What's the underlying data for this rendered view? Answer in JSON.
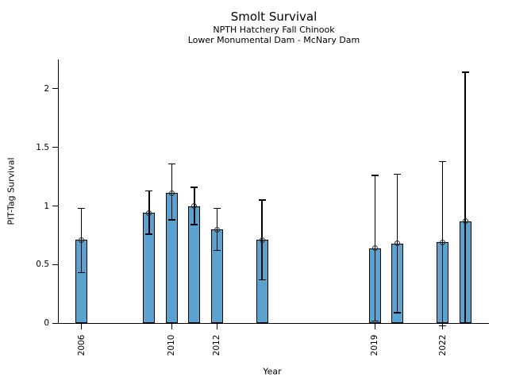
{
  "chart_data": {
    "type": "bar",
    "title": "Smolt Survival",
    "subtitle1": "NPTH Hatchery Fall Chinook",
    "subtitle2": "Lower Monumental Dam - McNary Dam",
    "xlabel": "Year",
    "ylabel": "PIT-Tag Survival",
    "xlim": [
      2005,
      2024
    ],
    "ylim": [
      0,
      2.25
    ],
    "grid": false,
    "legend": "none",
    "bar_color": "#5aa2d0",
    "bar_edge_color": "#000000",
    "error_bar_color": "#000000",
    "marker": "open-circle-at-bar-top",
    "yticks": [
      0,
      0.5,
      1,
      1.5,
      2
    ],
    "ytick_labels": [
      "0",
      "0.5",
      "1",
      "1.5",
      "2"
    ],
    "xticks": [
      2006,
      2010,
      2012,
      2019,
      2022
    ],
    "xtick_labels": [
      "2006",
      "2010",
      "2012",
      "2019",
      "2022"
    ],
    "bars": [
      {
        "year": 2006,
        "value": 0.71,
        "err_low": 0.43,
        "err_high": 0.98
      },
      {
        "year": 2009,
        "value": 0.94,
        "err_low": 0.76,
        "err_high": 1.13
      },
      {
        "year": 2010,
        "value": 1.11,
        "err_low": 0.88,
        "err_high": 1.36
      },
      {
        "year": 2011,
        "value": 1.0,
        "err_low": 0.84,
        "err_high": 1.16
      },
      {
        "year": 2012,
        "value": 0.8,
        "err_low": 0.62,
        "err_high": 0.98
      },
      {
        "year": 2014,
        "value": 0.71,
        "err_low": 0.37,
        "err_high": 1.05
      },
      {
        "year": 2019,
        "value": 0.64,
        "err_low": 0.02,
        "err_high": 1.26
      },
      {
        "year": 2020,
        "value": 0.68,
        "err_low": 0.09,
        "err_high": 1.27
      },
      {
        "year": 2022,
        "value": 0.69,
        "err_low": -0.02,
        "err_high": 1.38
      },
      {
        "year": 2023,
        "value": 0.87,
        "err_low": 0.0,
        "err_high": 2.14
      }
    ]
  }
}
